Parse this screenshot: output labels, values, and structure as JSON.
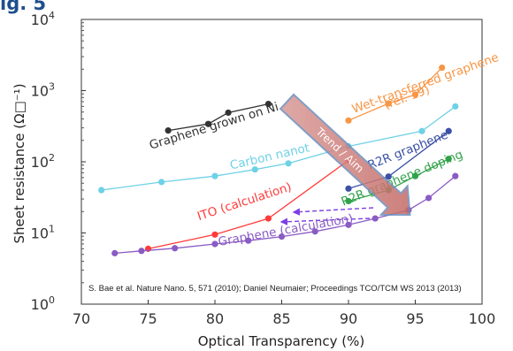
{
  "header_fragment": "ig. 5",
  "chart_data": {
    "type": "line",
    "xlabel": "Optical Transparency (%)",
    "ylabel": "Sheet resistance (Ω□⁻¹)",
    "xlim": [
      70,
      100
    ],
    "ylim": [
      1,
      10000
    ],
    "y_scale": "log",
    "x_ticks": [
      "70",
      "75",
      "80",
      "85",
      "90",
      "95",
      "100"
    ],
    "y_ticks": [
      {
        "base": "10",
        "exp": "0"
      },
      {
        "base": "10",
        "exp": "1"
      },
      {
        "base": "10",
        "exp": "2"
      },
      {
        "base": "10",
        "exp": "3"
      },
      {
        "base": "10",
        "exp": "4"
      }
    ],
    "citation": "S. Bae et al. Nature Nano. 5, 571 (2010); Daniel Neumaier; Proceedings TCO/TCM WS 2013 (2013)",
    "trend_label": "Trend / Aim",
    "trend_arrow": {
      "from": [
        85.4,
        700
      ],
      "to": [
        94.6,
        18
      ]
    },
    "series": [
      {
        "name": "Graphene grown on Ni",
        "color": "#333333",
        "x": [
          76.5,
          79.5,
          81,
          84
        ],
        "y": [
          275,
          340,
          490,
          650
        ],
        "label": {
          "text": "Graphene grown on Ni",
          "x": 75.2,
          "y": 150,
          "rotate": -17
        }
      },
      {
        "name": "Carbon nanotubes",
        "color": "#6fd1e6",
        "x": [
          71.5,
          76,
          80,
          83,
          85.5,
          90,
          95.5,
          98
        ],
        "y": [
          40,
          52,
          63,
          78,
          95,
          165,
          270,
          600
        ],
        "label": {
          "text": "Carbon nanot",
          "x": 81.2,
          "y": 78,
          "rotate": -13
        }
      },
      {
        "name": "Wet-transferred graphene (ref. 19)",
        "color": "#f79646",
        "x": [
          90,
          93,
          95,
          97
        ],
        "y": [
          380,
          660,
          880,
          2100
        ],
        "label": {
          "text": "Wet-transferred graphene",
          "x": 90.4,
          "y": 480,
          "rotate": -20
        },
        "label2": {
          "text": "(ref. 19)",
          "x": 92.8,
          "y": 550,
          "rotate": -20
        }
      },
      {
        "name": "ITO (calculation)",
        "color": "#ff3b3b",
        "x": [
          75,
          80,
          84,
          90
        ],
        "y": [
          6,
          9.5,
          16,
          105
        ],
        "label": {
          "text": "ITO (calculation)",
          "x": 78.8,
          "y": 15,
          "rotate": -18
        }
      },
      {
        "name": "R2R graphene",
        "color": "#3b50a6",
        "x": [
          90,
          93,
          97.5
        ],
        "y": [
          42,
          62,
          270
        ],
        "label": {
          "text": "R2R graphene",
          "x": 91.6,
          "y": 78,
          "rotate": -22
        }
      },
      {
        "name": "R2R graphene + doping",
        "color": "#30a24a",
        "x": [
          90,
          93,
          95,
          97.5
        ],
        "y": [
          28,
          40,
          63,
          110
        ],
        "label": {
          "text": "R2R graphene doping",
          "x": 89.6,
          "y": 24,
          "rotate": -22
        }
      },
      {
        "name": "Graphene (calculation)",
        "color": "#8a5bc4",
        "x": [
          72.5,
          74.5,
          77,
          80,
          82.5,
          85,
          87.5,
          90,
          92,
          94.5,
          96,
          98
        ],
        "y": [
          5.2,
          5.6,
          6.1,
          7,
          7.8,
          8.9,
          10.5,
          13,
          16,
          21,
          31,
          63
        ],
        "label": {
          "text": "Graphene (calculation)",
          "x": 80.3,
          "y": 6.6,
          "rotate": -10
        }
      }
    ]
  }
}
